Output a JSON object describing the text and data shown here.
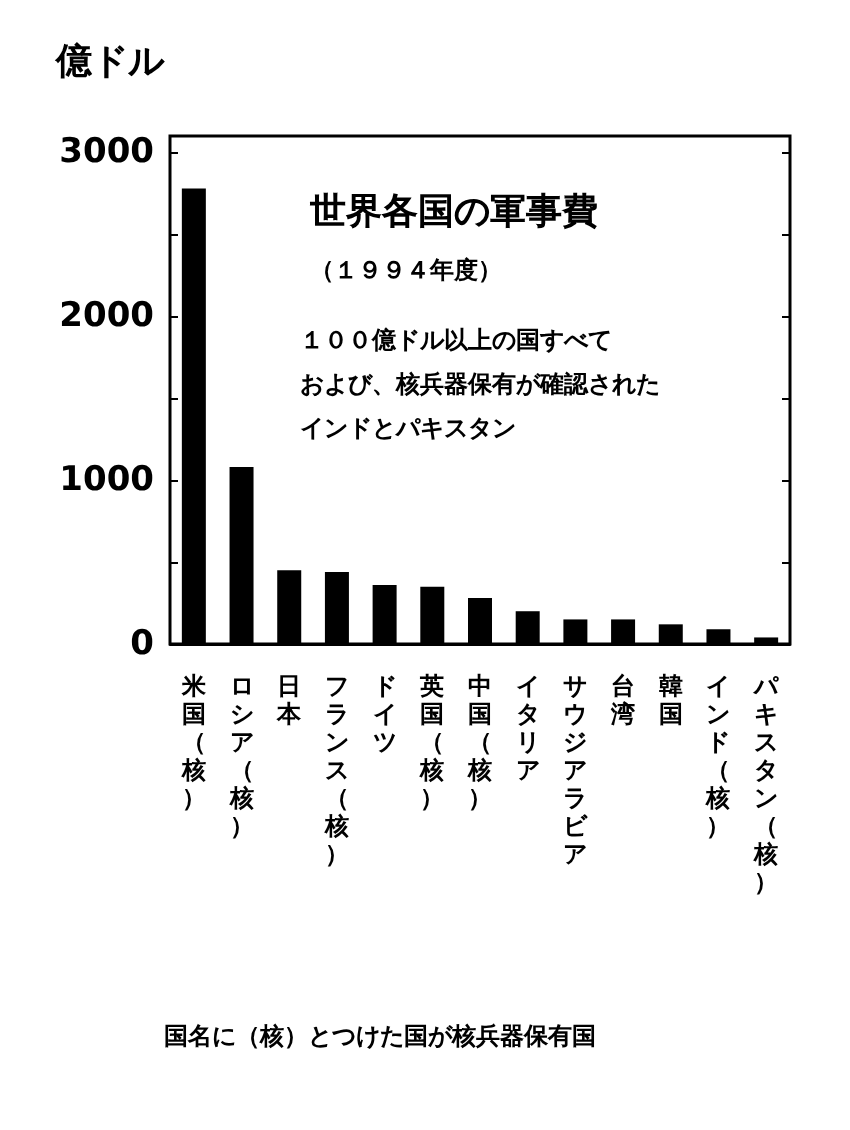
{
  "chart_data": {
    "type": "bar",
    "title": "世界各国の軍事費",
    "subtitle": "（１９９４年度）",
    "ylabel": "億ドル",
    "annotations": [
      "１００億ドル以上の国すべて",
      "および、核兵器保有が確認された",
      "インドとパキスタン",
      "国名に（核）とつけた国が核兵器保有国"
    ],
    "categories": [
      "米国（核）",
      "ロシア（核）",
      "日本",
      "フランス（核）",
      "ドイツ",
      "英国（核）",
      "中国（核）",
      "イタリア",
      "サウジアラビア",
      "台湾",
      "韓国",
      "インド（核）",
      "パキスタン（核）"
    ],
    "values": [
      2780,
      1080,
      450,
      440,
      360,
      350,
      280,
      200,
      150,
      150,
      120,
      90,
      40
    ],
    "color": "#000000",
    "ylim": [
      0,
      3100
    ],
    "yticks": [
      0,
      {
        "value": 500,
        "label": null
      },
      1000,
      {
        "value": 1500,
        "label": null
      },
      2000,
      {
        "value": 2500,
        "label": null
      },
      3000
    ],
    "grid": false
  }
}
